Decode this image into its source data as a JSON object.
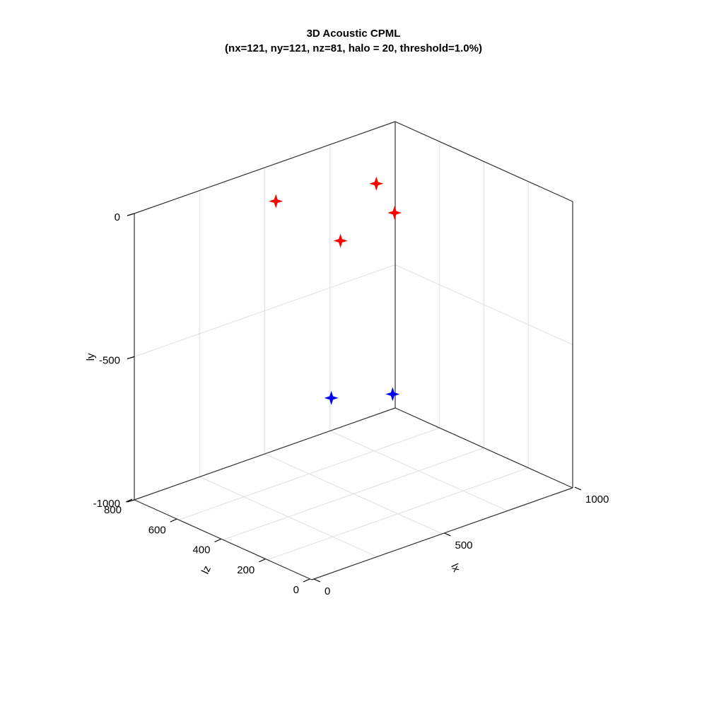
{
  "chart_data": {
    "type": "scatter",
    "title": "3D Acoustic CPML",
    "subtitle": "(nx=121, ny=121, nz=81, halo = 20, threshold=1.0%)",
    "xlabel": "lx",
    "ylabel": "ly",
    "zlabel": "lz",
    "xlim": [
      0,
      1000
    ],
    "ylim": [
      -1000,
      0
    ],
    "zlim": [
      0,
      800
    ],
    "x_ticks": [
      0,
      500,
      1000
    ],
    "y_ticks": [
      -1000,
      -500,
      0
    ],
    "z_ticks": [
      0,
      200,
      400,
      600,
      800
    ],
    "grid": true,
    "series": [
      {
        "color": "#ff0000",
        "marker": "star4",
        "points": [
          {
            "x": 500,
            "y": -100,
            "z": 750
          },
          {
            "x": 800,
            "y": -100,
            "z": 650
          },
          {
            "x": 450,
            "y": -100,
            "z": 400
          },
          {
            "x": 700,
            "y": -100,
            "z": 450
          }
        ]
      },
      {
        "color": "#0000ff",
        "marker": "star4",
        "points": [
          {
            "x": 500,
            "y": -700,
            "z": 500
          },
          {
            "x": 650,
            "y": -700,
            "z": 400
          }
        ]
      }
    ]
  }
}
